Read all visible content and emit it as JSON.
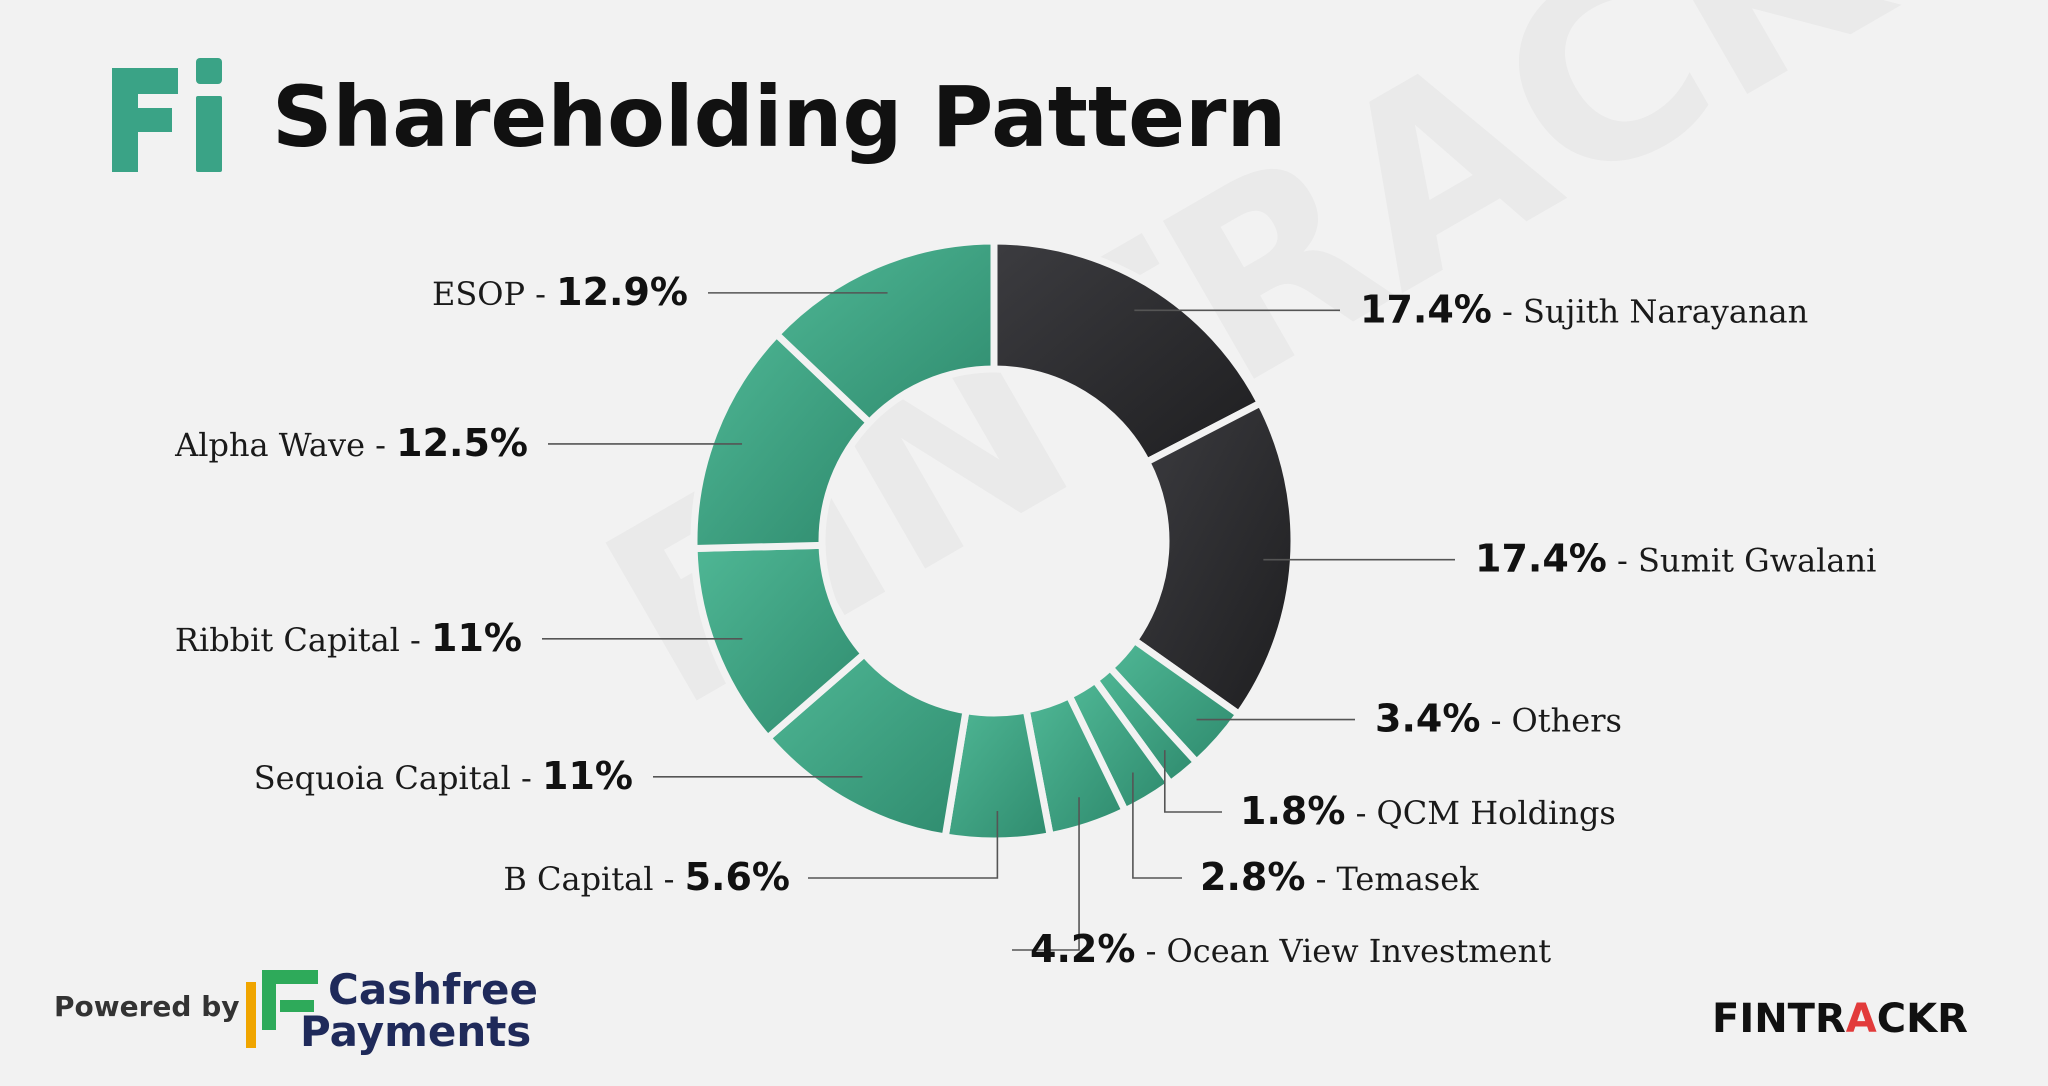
{
  "header": {
    "logo_text": "Fi",
    "title": "Shareholding Pattern"
  },
  "watermark": "FINTRACKR",
  "footer": {
    "powered_by": "Powered by",
    "sponsor_line1": "Cashfree",
    "sponsor_line2": "Payments",
    "brand_pre": "FINTR",
    "brand_a": "A",
    "brand_post": "CKR"
  },
  "colors": {
    "founder": "#2c2c2e",
    "investor": "#3aa386",
    "background": "#f2f2f2",
    "brand_accent": "#e23b3b"
  },
  "chart_data": {
    "type": "pie",
    "title": "Shareholding Pattern",
    "unit": "%",
    "donut": true,
    "series": [
      {
        "name": "Sujith Narayanan",
        "value": 17.4,
        "label_value": "17.4%",
        "group": "founder"
      },
      {
        "name": "Sumit Gwalani",
        "value": 17.4,
        "label_value": "17.4%",
        "group": "founder"
      },
      {
        "name": "Others",
        "value": 3.4,
        "label_value": "3.4%",
        "group": "investor"
      },
      {
        "name": "QCM Holdings",
        "value": 1.8,
        "label_value": "1.8%",
        "group": "investor"
      },
      {
        "name": "Temasek",
        "value": 2.8,
        "label_value": "2.8%",
        "group": "investor"
      },
      {
        "name": "Ocean View Investment",
        "value": 4.2,
        "label_value": "4.2%",
        "group": "investor"
      },
      {
        "name": "B Capital",
        "value": 5.6,
        "label_value": "5.6%",
        "group": "investor"
      },
      {
        "name": "Sequoia Capital",
        "value": 11,
        "label_value": "11%",
        "group": "investor"
      },
      {
        "name": "Ribbit Capital",
        "value": 11,
        "label_value": "11%",
        "group": "investor"
      },
      {
        "name": "Alpha Wave",
        "value": 12.5,
        "label_value": "12.5%",
        "group": "investor"
      },
      {
        "name": "ESOP",
        "value": 12.9,
        "label_value": "12.9%",
        "group": "investor"
      }
    ]
  }
}
